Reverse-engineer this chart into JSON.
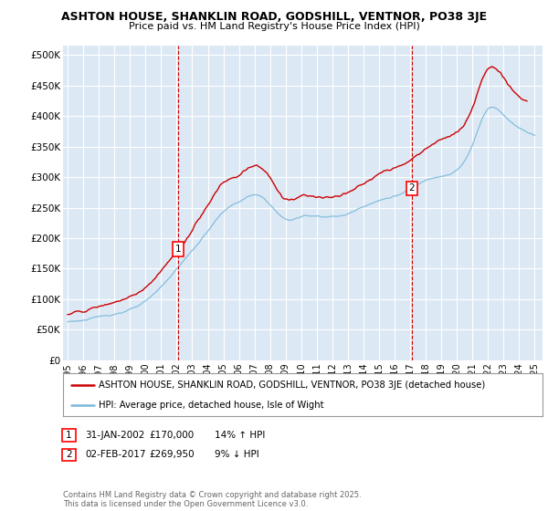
{
  "title1": "ASHTON HOUSE, SHANKLIN ROAD, GODSHILL, VENTNOR, PO38 3JE",
  "title2": "Price paid vs. HM Land Registry's House Price Index (HPI)",
  "ytick_vals": [
    0,
    50000,
    100000,
    150000,
    200000,
    250000,
    300000,
    350000,
    400000,
    450000,
    500000
  ],
  "ylim": [
    0,
    515000
  ],
  "xlim_start": 1994.7,
  "xlim_end": 2025.5,
  "plot_bg": "#dce9f5",
  "fig_bg": "#ffffff",
  "grid_color": "#ffffff",
  "hpi_color": "#7ab8d9",
  "price_color": "#cc0000",
  "marker1_x": 2002.08,
  "marker1_y": 170000,
  "marker2_x": 2017.09,
  "marker2_y": 269950,
  "legend_label1": "ASHTON HOUSE, SHANKLIN ROAD, GODSHILL, VENTNOR, PO38 3JE (detached house)",
  "legend_label2": "HPI: Average price, detached house, Isle of Wight",
  "footnote": "Contains HM Land Registry data © Crown copyright and database right 2025.\nThis data is licensed under the Open Government Licence v3.0.",
  "xtick_years": [
    1995,
    1996,
    1997,
    1998,
    1999,
    2000,
    2001,
    2002,
    2003,
    2004,
    2005,
    2006,
    2007,
    2008,
    2009,
    2010,
    2011,
    2012,
    2013,
    2014,
    2015,
    2016,
    2017,
    2018,
    2019,
    2020,
    2021,
    2022,
    2023,
    2024,
    2025
  ],
  "hpi_keypoints_x": [
    1995,
    1996,
    1997,
    1998,
    1999,
    2000,
    2001,
    2002,
    2003,
    2004,
    2005,
    2006,
    2007,
    2008,
    2009,
    2010,
    2011,
    2012,
    2013,
    2014,
    2015,
    2016,
    2017,
    2018,
    2019,
    2020,
    2021,
    2022,
    2023,
    2024,
    2025
  ],
  "hpi_keypoints_y": [
    63000,
    66000,
    70000,
    76000,
    84000,
    95000,
    118000,
    148000,
    178000,
    210000,
    242000,
    258000,
    268000,
    252000,
    228000,
    232000,
    234000,
    234000,
    238000,
    252000,
    262000,
    270000,
    280000,
    295000,
    305000,
    315000,
    355000,
    415000,
    405000,
    385000,
    375000
  ],
  "price_keypoints_x": [
    1995,
    1996,
    1997,
    1998,
    1999,
    2000,
    2001,
    2002,
    2003,
    2004,
    2005,
    2006,
    2007,
    2008,
    2009,
    2010,
    2011,
    2012,
    2013,
    2014,
    2015,
    2016,
    2017,
    2018,
    2019,
    2020,
    2021,
    2022,
    2023,
    2024,
    2024.5
  ],
  "price_keypoints_y": [
    75000,
    79000,
    84000,
    91000,
    100000,
    116000,
    143000,
    170000,
    205000,
    245000,
    278000,
    292000,
    305000,
    288000,
    255000,
    262000,
    265000,
    265000,
    272000,
    285000,
    296000,
    308000,
    320000,
    338000,
    352000,
    362000,
    405000,
    468000,
    452000,
    422000,
    415000
  ]
}
